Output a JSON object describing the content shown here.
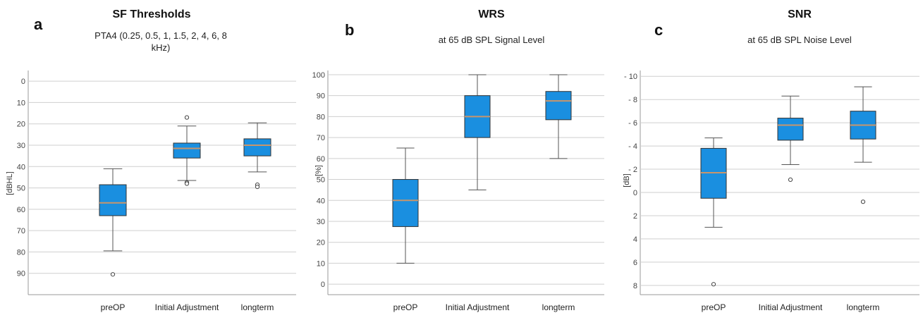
{
  "chart_data": [
    {
      "type": "box",
      "letter": "a",
      "title": "SF Thresholds",
      "subtitle": "PTA4 (0.25, 0.5, 1, 1.5, 2, 4, 6, 8 kHz)",
      "ylabel": "[dBHL]",
      "y_inverted": true,
      "ylim": [
        -5,
        100
      ],
      "yticks": [
        "0",
        "10",
        "20",
        "30",
        "40",
        "50",
        "60",
        "70",
        "80",
        "90"
      ],
      "categories": [
        "preOP",
        "Initial Adjustment",
        "longterm"
      ],
      "boxes": [
        {
          "whisker_low": 41,
          "q1": 48.5,
          "median": 57,
          "q3": 63,
          "whisker_high": 79.5,
          "outliers": [
            90.5
          ]
        },
        {
          "whisker_low": 21,
          "q1": 29,
          "median": 31.5,
          "q3": 36,
          "whisker_high": 46.5,
          "outliers": [
            17,
            47.5,
            48
          ]
        },
        {
          "whisker_low": 19.5,
          "q1": 27,
          "median": 30,
          "q3": 35,
          "whisker_high": 42.5,
          "outliers": [
            48.5,
            49.5
          ]
        }
      ],
      "box_color": "#1a8fe0",
      "median_color": "#c8956b",
      "grid": true
    },
    {
      "type": "box",
      "letter": "b",
      "title": "WRS",
      "subtitle": "at 65 dB SPL Signal Level",
      "ylabel": "[%]",
      "y_inverted": false,
      "ylim": [
        -5,
        102
      ],
      "yticks": [
        "0",
        "10",
        "20",
        "30",
        "40",
        "50",
        "60",
        "70",
        "80",
        "90",
        "100"
      ],
      "categories": [
        "preOP",
        "Initial Adjustment",
        "longterm"
      ],
      "boxes": [
        {
          "whisker_low": 10,
          "q1": 27.5,
          "median": 40,
          "q3": 50,
          "whisker_high": 65,
          "outliers": []
        },
        {
          "whisker_low": 45,
          "q1": 70,
          "median": 80,
          "q3": 90,
          "whisker_high": 100,
          "outliers": []
        },
        {
          "whisker_low": 60,
          "q1": 78.5,
          "median": 87.5,
          "q3": 92,
          "whisker_high": 100,
          "outliers": []
        }
      ],
      "box_color": "#1a8fe0",
      "median_color": "#c8956b",
      "grid": true
    },
    {
      "type": "box",
      "letter": "c",
      "title": "SNR",
      "subtitle": "at 65 dB SPL Noise Level",
      "ylabel": "[dB]",
      "y_inverted": true,
      "ylim": [
        -10.5,
        8.8
      ],
      "yticks": [
        "- 10",
        "- 8",
        "- 6",
        "- 4",
        "- 2",
        "0",
        "2",
        "4",
        "6",
        "8"
      ],
      "categories": [
        "preOP",
        "Initial Adjustment",
        "longterm"
      ],
      "boxes": [
        {
          "whisker_low": -4.7,
          "q1": -3.8,
          "median": -1.7,
          "q3": 0.5,
          "whisker_high": 3,
          "outliers": [
            7.9
          ]
        },
        {
          "whisker_low": -8.3,
          "q1": -6.4,
          "median": -5.8,
          "q3": -4.5,
          "whisker_high": -2.4,
          "outliers": [
            -1.1
          ]
        },
        {
          "whisker_low": -9.1,
          "q1": -7,
          "median": -5.8,
          "q3": -4.6,
          "whisker_high": -2.6,
          "outliers": [
            0.8
          ]
        }
      ],
      "box_color": "#1a8fe0",
      "median_color": "#c8956b",
      "grid": true
    }
  ]
}
